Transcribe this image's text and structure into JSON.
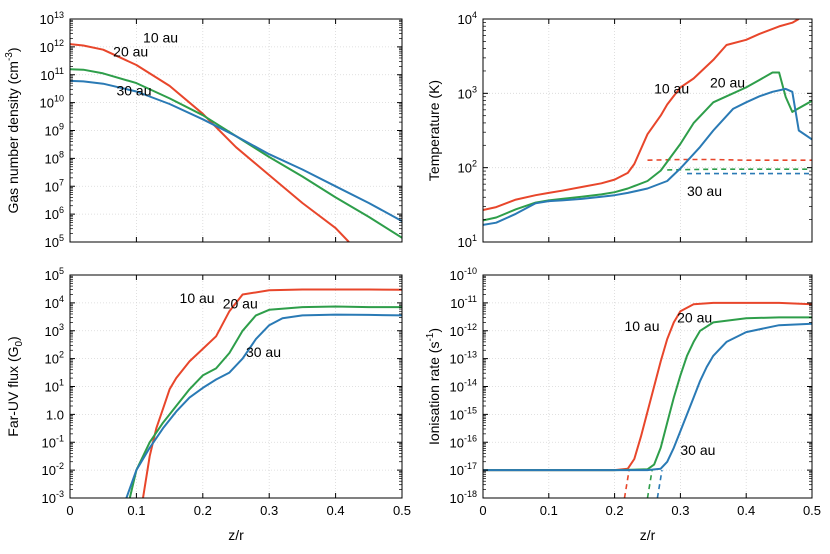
{
  "colors": {
    "r10": "#e8462b",
    "r20": "#2e9e4a",
    "r30": "#2a7ab5"
  },
  "shared_xlabel": "z/r",
  "chart_data": [
    {
      "id": "density",
      "type": "line",
      "ylabel": "Gas number density (cm⁻³)",
      "ylabel_base": "Gas number density (cm",
      "ylabel_sup": "-3",
      "ylabel_end": ")",
      "log_y": true,
      "xlim": [
        0,
        0.5
      ],
      "ylim": [
        5,
        13
      ],
      "x_ticks": [
        "0",
        "0.1",
        "0.2",
        "0.3",
        "0.4",
        "0.5"
      ],
      "y_tick_exponents": [
        5,
        6,
        7,
        8,
        9,
        10,
        11,
        12,
        13
      ],
      "grid": true,
      "series": [
        {
          "name": "10 au",
          "color_key": "r10",
          "label_at": [
            0.11,
            12.15
          ],
          "x": [
            0,
            0.02,
            0.05,
            0.1,
            0.15,
            0.2,
            0.25,
            0.3,
            0.35,
            0.4,
            0.42
          ],
          "y": [
            12.1,
            12.05,
            11.9,
            11.35,
            10.6,
            9.6,
            8.4,
            7.4,
            6.4,
            5.5,
            5.0
          ]
        },
        {
          "name": "20 au",
          "color_key": "r20",
          "label_at": [
            0.065,
            11.65
          ],
          "x": [
            0,
            0.02,
            0.05,
            0.1,
            0.15,
            0.2,
            0.25,
            0.3,
            0.35,
            0.4,
            0.45,
            0.5
          ],
          "y": [
            11.2,
            11.18,
            11.05,
            10.7,
            10.15,
            9.55,
            8.8,
            8.05,
            7.35,
            6.6,
            5.9,
            5.15
          ]
        },
        {
          "name": "30 au",
          "color_key": "r30",
          "label_at": [
            0.07,
            10.25
          ],
          "x": [
            0,
            0.02,
            0.05,
            0.1,
            0.15,
            0.2,
            0.25,
            0.3,
            0.35,
            0.4,
            0.45,
            0.5
          ],
          "y": [
            10.78,
            10.76,
            10.68,
            10.4,
            9.95,
            9.4,
            8.8,
            8.15,
            7.6,
            7.0,
            6.4,
            5.75
          ]
        }
      ],
      "extra_series": []
    },
    {
      "id": "temperature",
      "type": "line",
      "ylabel": "Temperature (K)",
      "log_y": true,
      "xlim": [
        0,
        0.5
      ],
      "ylim": [
        1,
        4
      ],
      "x_ticks": [
        "0",
        "0.1",
        "0.2",
        "0.3",
        "0.4",
        "0.5"
      ],
      "y_tick_exponents": [
        1,
        2,
        3,
        4
      ],
      "grid": true,
      "series": [
        {
          "name": "10 au",
          "color_key": "r10",
          "label_at": [
            0.26,
            3.0
          ],
          "x": [
            0,
            0.02,
            0.05,
            0.08,
            0.1,
            0.12,
            0.15,
            0.18,
            0.2,
            0.22,
            0.23,
            0.25,
            0.27,
            0.28,
            0.3,
            0.32,
            0.35,
            0.37,
            0.4,
            0.42,
            0.45,
            0.47,
            0.48
          ],
          "y": [
            1.43,
            1.47,
            1.57,
            1.63,
            1.66,
            1.69,
            1.74,
            1.79,
            1.84,
            1.93,
            2.05,
            2.45,
            2.7,
            2.85,
            3.08,
            3.2,
            3.45,
            3.65,
            3.72,
            3.8,
            3.9,
            3.95,
            4.0
          ]
        },
        {
          "name": "20 au",
          "color_key": "r20",
          "label_at": [
            0.345,
            3.08
          ],
          "x": [
            0,
            0.02,
            0.05,
            0.08,
            0.1,
            0.12,
            0.15,
            0.18,
            0.2,
            0.22,
            0.25,
            0.27,
            0.3,
            0.32,
            0.35,
            0.37,
            0.4,
            0.42,
            0.44,
            0.45,
            0.46,
            0.47,
            0.5
          ],
          "y": [
            1.29,
            1.33,
            1.44,
            1.53,
            1.56,
            1.58,
            1.61,
            1.64,
            1.67,
            1.72,
            1.82,
            1.96,
            2.32,
            2.6,
            2.88,
            2.96,
            3.08,
            3.18,
            3.28,
            3.28,
            2.95,
            2.75,
            2.9
          ]
        },
        {
          "name": "30 au",
          "color_key": "r30",
          "label_at": [
            0.31,
            1.62
          ],
          "x": [
            0,
            0.02,
            0.05,
            0.08,
            0.1,
            0.12,
            0.15,
            0.18,
            0.2,
            0.22,
            0.25,
            0.28,
            0.3,
            0.33,
            0.35,
            0.38,
            0.4,
            0.42,
            0.44,
            0.46,
            0.47,
            0.48,
            0.5
          ],
          "y": [
            1.23,
            1.26,
            1.38,
            1.52,
            1.55,
            1.56,
            1.58,
            1.61,
            1.63,
            1.66,
            1.72,
            1.82,
            1.99,
            2.28,
            2.5,
            2.79,
            2.88,
            2.96,
            3.02,
            3.06,
            3.02,
            2.5,
            2.38
          ]
        }
      ],
      "extra_series": [
        {
          "color_key": "r10",
          "dashed": true,
          "x": [
            0.25,
            0.3,
            0.35,
            0.4,
            0.45,
            0.5
          ],
          "y": [
            2.1,
            2.11,
            2.11,
            2.1,
            2.1,
            2.1
          ]
        },
        {
          "color_key": "r20",
          "dashed": true,
          "x": [
            0.28,
            0.35,
            0.4,
            0.45,
            0.5
          ],
          "y": [
            1.97,
            1.98,
            1.98,
            1.98,
            1.98
          ]
        },
        {
          "color_key": "r30",
          "dashed": true,
          "x": [
            0.31,
            0.35,
            0.4,
            0.45,
            0.5
          ],
          "y": [
            1.92,
            1.92,
            1.92,
            1.92,
            1.92
          ]
        }
      ]
    },
    {
      "id": "fuv",
      "type": "line",
      "ylabel": "Far-UV flux (G",
      "ylabel_sub": "0",
      "ylabel_end": ")",
      "log_y": true,
      "xlim": [
        0,
        0.5
      ],
      "ylim": [
        -3,
        5
      ],
      "x_ticks": [
        "0",
        "0.1",
        "0.2",
        "0.3",
        "0.4",
        "0.5"
      ],
      "y_tick_labels": [
        "10⁻³",
        "10⁻²",
        "10⁻¹",
        "1.0",
        "10¹",
        "10²",
        "10³",
        "10⁴",
        "10⁵"
      ],
      "y_tick_plain": [
        "1.0"
      ],
      "y_tick_exponents": [
        -3,
        -2,
        -1,
        0,
        1,
        2,
        3,
        4,
        5
      ],
      "grid": true,
      "series": [
        {
          "name": "10 au",
          "color_key": "r10",
          "label_at": [
            0.165,
            4.0
          ],
          "x": [
            0.11,
            0.12,
            0.13,
            0.14,
            0.15,
            0.16,
            0.18,
            0.2,
            0.22,
            0.24,
            0.26,
            0.3,
            0.35,
            0.4,
            0.45,
            0.5
          ],
          "y": [
            -3.0,
            -1.5,
            -0.5,
            0.2,
            0.9,
            1.3,
            1.9,
            2.35,
            2.8,
            3.7,
            4.3,
            4.45,
            4.48,
            4.48,
            4.48,
            4.47
          ]
        },
        {
          "name": "20 au",
          "color_key": "r20",
          "label_at": [
            0.23,
            3.8
          ],
          "x": [
            0.09,
            0.1,
            0.12,
            0.14,
            0.16,
            0.18,
            0.2,
            0.22,
            0.24,
            0.26,
            0.28,
            0.3,
            0.35,
            0.4,
            0.45,
            0.5
          ],
          "y": [
            -3.0,
            -2.0,
            -1.0,
            -0.3,
            0.3,
            0.9,
            1.4,
            1.65,
            2.2,
            3.0,
            3.55,
            3.75,
            3.85,
            3.87,
            3.85,
            3.85
          ]
        },
        {
          "name": "30 au",
          "color_key": "r30",
          "label_at": [
            0.265,
            2.05
          ],
          "x": [
            0.085,
            0.1,
            0.12,
            0.14,
            0.16,
            0.18,
            0.2,
            0.22,
            0.24,
            0.26,
            0.28,
            0.3,
            0.32,
            0.35,
            0.4,
            0.45,
            0.5
          ],
          "y": [
            -3.0,
            -2.0,
            -1.2,
            -0.5,
            0.1,
            0.6,
            0.95,
            1.25,
            1.5,
            2.0,
            2.7,
            3.2,
            3.45,
            3.55,
            3.58,
            3.57,
            3.55
          ]
        }
      ],
      "extra_series": []
    },
    {
      "id": "ionisation",
      "type": "line",
      "ylabel": "Ionisation rate (s",
      "ylabel_sup": "-1",
      "ylabel_end": ")",
      "log_y": true,
      "xlim": [
        0,
        0.5
      ],
      "ylim": [
        -18,
        -10
      ],
      "x_ticks": [
        "0",
        "0.1",
        "0.2",
        "0.3",
        "0.4",
        "0.5"
      ],
      "y_tick_exponents": [
        -18,
        -17,
        -16,
        -15,
        -14,
        -13,
        -12,
        -11,
        -10
      ],
      "grid": true,
      "series": [
        {
          "name": "10 au",
          "color_key": "r10",
          "label_at": [
            0.215,
            -12.0
          ],
          "x": [
            0,
            0.1,
            0.2,
            0.22,
            0.23,
            0.24,
            0.25,
            0.26,
            0.27,
            0.28,
            0.29,
            0.3,
            0.32,
            0.35,
            0.4,
            0.45,
            0.5
          ],
          "y": [
            -17.0,
            -17.0,
            -17.0,
            -16.95,
            -16.6,
            -15.8,
            -14.9,
            -14.0,
            -13.1,
            -12.3,
            -11.7,
            -11.3,
            -11.05,
            -11.0,
            -11.0,
            -11.0,
            -11.05
          ]
        },
        {
          "name": "20 au",
          "color_key": "r20",
          "label_at": [
            0.295,
            -11.7
          ],
          "x": [
            0,
            0.1,
            0.2,
            0.25,
            0.26,
            0.27,
            0.28,
            0.29,
            0.3,
            0.31,
            0.32,
            0.33,
            0.35,
            0.4,
            0.45,
            0.5
          ],
          "y": [
            -17.0,
            -17.0,
            -17.0,
            -16.97,
            -16.8,
            -16.2,
            -15.3,
            -14.4,
            -13.6,
            -12.9,
            -12.4,
            -12.0,
            -11.7,
            -11.55,
            -11.52,
            -11.52
          ]
        },
        {
          "name": "30 au",
          "color_key": "r30",
          "label_at": [
            0.3,
            -16.45
          ],
          "x": [
            0,
            0.1,
            0.2,
            0.25,
            0.27,
            0.28,
            0.29,
            0.3,
            0.31,
            0.32,
            0.33,
            0.34,
            0.35,
            0.37,
            0.4,
            0.45,
            0.5
          ],
          "y": [
            -17.0,
            -17.0,
            -17.0,
            -17.0,
            -16.95,
            -16.7,
            -16.2,
            -15.6,
            -15.0,
            -14.4,
            -13.8,
            -13.3,
            -12.9,
            -12.4,
            -12.05,
            -11.8,
            -11.75
          ]
        }
      ],
      "extra_series": [
        {
          "color_key": "r10",
          "dashed": true,
          "x": [
            0.215,
            0.222
          ],
          "y": [
            -18.0,
            -17.0
          ]
        },
        {
          "color_key": "r20",
          "dashed": true,
          "x": [
            0.25,
            0.257
          ],
          "y": [
            -18.0,
            -17.0
          ]
        },
        {
          "color_key": "r30",
          "dashed": true,
          "x": [
            0.265,
            0.272
          ],
          "y": [
            -18.0,
            -17.0
          ]
        }
      ]
    }
  ]
}
